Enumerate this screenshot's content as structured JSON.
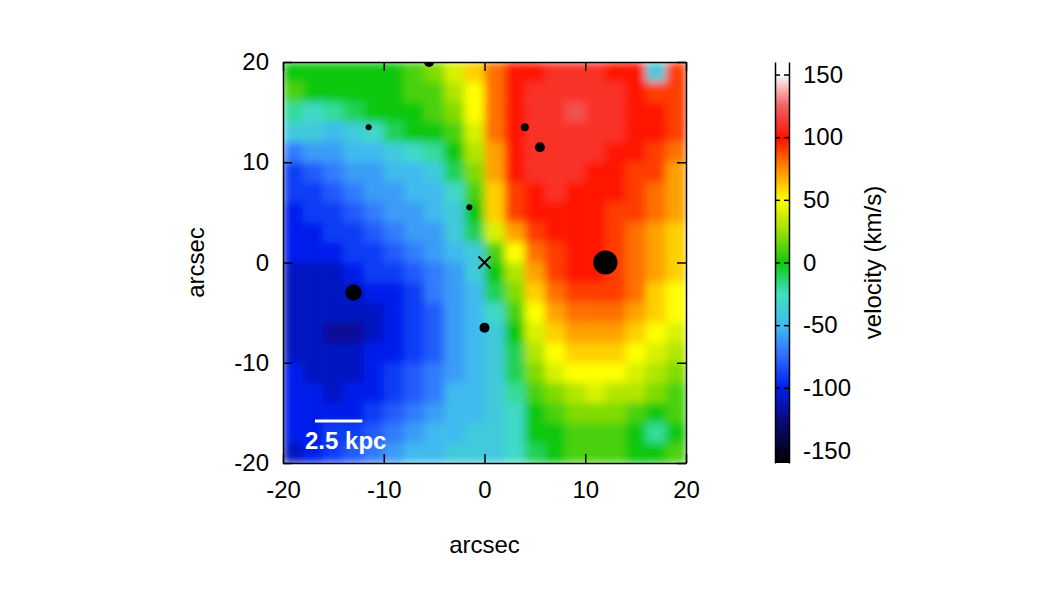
{
  "chart_data": {
    "type": "heatmap",
    "xlabel": "arcsec",
    "ylabel": "arcsec",
    "xlim": [
      -20,
      20
    ],
    "ylim": [
      -20,
      20
    ],
    "xticks": [
      -20,
      -10,
      0,
      10,
      20
    ],
    "yticks": [
      -20,
      -10,
      0,
      10,
      20
    ],
    "x": [
      -19,
      -17,
      -15,
      -13,
      -11,
      -9,
      -7,
      -5,
      -3,
      -1,
      1,
      3,
      5,
      7,
      9,
      11,
      13,
      15,
      17,
      19
    ],
    "y": [
      19,
      17,
      15,
      13,
      11,
      9,
      7,
      5,
      3,
      1,
      -1,
      -3,
      -5,
      -7,
      -9,
      -11,
      -13,
      -15,
      -17,
      -19
    ],
    "values": [
      [
        0,
        0,
        0,
        0,
        0,
        0,
        10,
        20,
        40,
        60,
        80,
        100,
        100,
        110,
        110,
        110,
        100,
        100,
        -40,
        90
      ],
      [
        10,
        0,
        0,
        0,
        0,
        0,
        10,
        10,
        30,
        50,
        80,
        100,
        110,
        110,
        110,
        110,
        110,
        100,
        90,
        90
      ],
      [
        -20,
        -30,
        -20,
        -10,
        0,
        0,
        0,
        10,
        20,
        50,
        80,
        100,
        110,
        110,
        120,
        110,
        110,
        100,
        100,
        90
      ],
      [
        -40,
        -40,
        -50,
        -40,
        -30,
        -10,
        0,
        0,
        10,
        40,
        80,
        100,
        110,
        110,
        110,
        110,
        110,
        100,
        100,
        90
      ],
      [
        -70,
        -60,
        -60,
        -50,
        -50,
        -40,
        -30,
        -20,
        0,
        30,
        70,
        100,
        110,
        110,
        110,
        110,
        100,
        100,
        90,
        80
      ],
      [
        -90,
        -80,
        -70,
        -60,
        -60,
        -50,
        -50,
        -40,
        -10,
        20,
        70,
        100,
        110,
        110,
        110,
        100,
        100,
        90,
        90,
        70
      ],
      [
        -90,
        -90,
        -80,
        -70,
        -60,
        -60,
        -50,
        -50,
        -30,
        10,
        60,
        90,
        100,
        110,
        100,
        100,
        100,
        90,
        80,
        70
      ],
      [
        -100,
        -90,
        -90,
        -80,
        -70,
        -60,
        -60,
        -50,
        -40,
        0,
        60,
        90,
        100,
        100,
        100,
        100,
        90,
        90,
        80,
        70
      ],
      [
        -100,
        -100,
        -90,
        -90,
        -80,
        -70,
        -60,
        -60,
        -40,
        -10,
        40,
        70,
        90,
        100,
        100,
        100,
        90,
        80,
        70,
        60
      ],
      [
        -100,
        -100,
        -100,
        -90,
        -90,
        -80,
        -70,
        -60,
        -50,
        -40,
        10,
        50,
        80,
        90,
        100,
        100,
        90,
        80,
        70,
        60
      ],
      [
        -110,
        -110,
        -110,
        -100,
        -90,
        -90,
        -80,
        -70,
        -60,
        -40,
        0,
        30,
        70,
        90,
        100,
        100,
        90,
        80,
        70,
        60
      ],
      [
        -110,
        -110,
        -110,
        -110,
        -100,
        -100,
        -90,
        -70,
        -60,
        -50,
        -10,
        20,
        60,
        80,
        90,
        90,
        90,
        80,
        60,
        50
      ],
      [
        -110,
        -110,
        -110,
        -110,
        -110,
        -100,
        -90,
        -80,
        -60,
        -50,
        -30,
        10,
        50,
        70,
        80,
        80,
        80,
        70,
        60,
        50
      ],
      [
        -110,
        -110,
        -120,
        -120,
        -110,
        -100,
        -90,
        -80,
        -60,
        -50,
        -40,
        0,
        40,
        60,
        70,
        70,
        70,
        60,
        50,
        40
      ],
      [
        -110,
        -110,
        -110,
        -110,
        -100,
        -100,
        -90,
        -80,
        -60,
        -50,
        -40,
        -10,
        30,
        50,
        60,
        60,
        60,
        50,
        40,
        30
      ],
      [
        -100,
        -110,
        -110,
        -110,
        -100,
        -90,
        -80,
        -70,
        -60,
        -50,
        -40,
        -10,
        20,
        40,
        50,
        50,
        50,
        40,
        30,
        20
      ],
      [
        -100,
        -100,
        -110,
        -100,
        -100,
        -90,
        -80,
        -70,
        -50,
        -50,
        -40,
        -20,
        10,
        20,
        30,
        40,
        30,
        30,
        20,
        10
      ],
      [
        -100,
        -100,
        -100,
        -100,
        -90,
        -80,
        -70,
        -60,
        -50,
        -50,
        -40,
        -30,
        0,
        10,
        20,
        20,
        20,
        10,
        0,
        10
      ],
      [
        -100,
        -100,
        -90,
        -90,
        -80,
        -70,
        -60,
        -50,
        -50,
        -40,
        -40,
        -30,
        0,
        0,
        10,
        10,
        10,
        0,
        -20,
        0
      ],
      [
        -110,
        -100,
        -90,
        -80,
        -70,
        -60,
        -50,
        -50,
        -40,
        -40,
        -40,
        -30,
        -10,
        0,
        10,
        10,
        10,
        0,
        0,
        10
      ]
    ],
    "colorbar": {
      "label": "velocity (km/s)",
      "range": [
        -160,
        160
      ],
      "ticks": [
        -150,
        -100,
        -50,
        0,
        50,
        100,
        150
      ]
    },
    "masked_regions": [
      {
        "x": 12,
        "y": 0,
        "r": 1.2
      },
      {
        "x": -13,
        "y": -3,
        "r": 0.8
      },
      {
        "x": 5.5,
        "y": 11.5,
        "r": 0.5
      },
      {
        "x": 4,
        "y": 13.5,
        "r": 0.4
      },
      {
        "x": -5.5,
        "y": 20,
        "r": 0.5
      },
      {
        "x": 0,
        "y": -6.5,
        "r": 0.5
      },
      {
        "x": -1.5,
        "y": 5.5,
        "r": 0.3
      },
      {
        "x": -11.5,
        "y": 13.5,
        "r": 0.3
      }
    ],
    "center": [
      0,
      0
    ],
    "scale_bar": {
      "label": "2.5 kpc",
      "length": 4.7
    }
  }
}
